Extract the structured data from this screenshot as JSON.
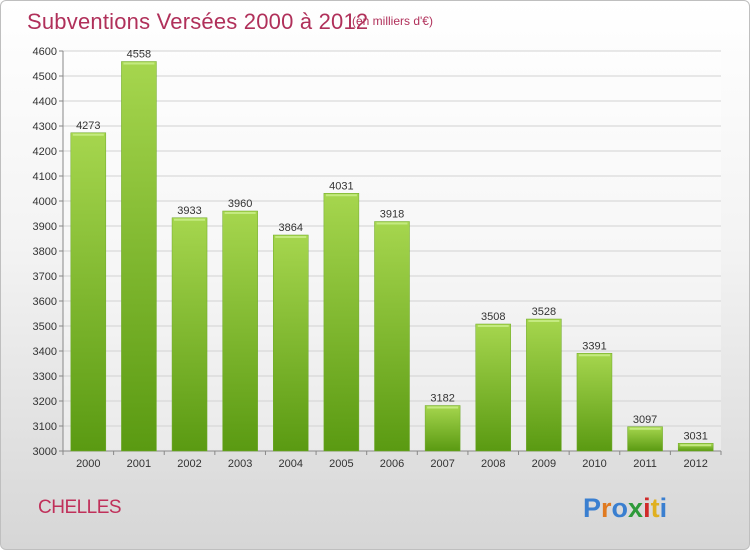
{
  "header": {
    "title": "Subventions Versées 2000 à 2012",
    "unit_note": "(en milliers d'€)"
  },
  "footer": {
    "location": "CHELLES",
    "brand": "Proxiti"
  },
  "colors": {
    "title": "#b0305a",
    "bar_light": "#a6d64e",
    "bar_dark": "#5a9a12",
    "axis_text": "#333333"
  },
  "chart_data": {
    "type": "bar",
    "title": "Subventions Versées 2000 à 2012",
    "subtitle": "(en milliers d'€)",
    "categories": [
      "2000",
      "2001",
      "2002",
      "2003",
      "2004",
      "2005",
      "2006",
      "2007",
      "2008",
      "2009",
      "2010",
      "2011",
      "2012"
    ],
    "values": [
      4273,
      4558,
      3933,
      3960,
      3864,
      4031,
      3918,
      3182,
      3508,
      3528,
      3391,
      3097,
      3031
    ],
    "ylim": [
      3000,
      4600
    ],
    "yticks": [
      3000,
      3100,
      3200,
      3300,
      3400,
      3500,
      3600,
      3700,
      3800,
      3900,
      4000,
      4100,
      4200,
      4300,
      4400,
      4500,
      4600
    ],
    "grid": true,
    "legend": "none",
    "data_labels": true
  }
}
